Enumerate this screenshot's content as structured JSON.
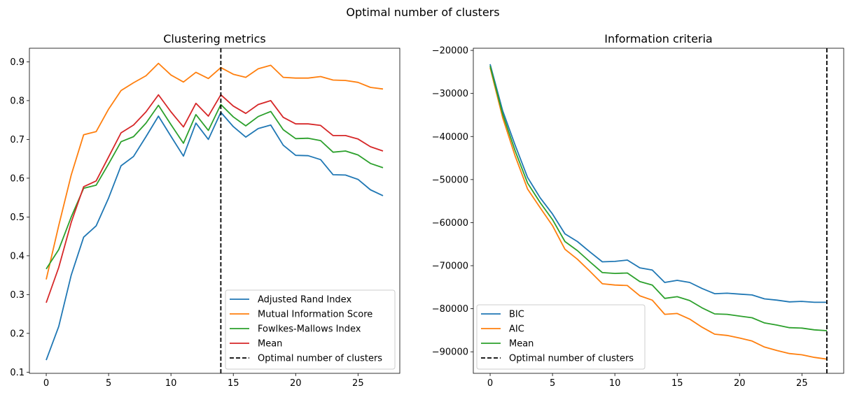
{
  "figure": {
    "title": "Optimal number of clusters"
  },
  "chart_data": [
    {
      "type": "line",
      "title": "Clustering metrics",
      "xlabel": "",
      "ylabel": "",
      "xlim": [
        -1.35,
        28.35
      ],
      "ylim": [
        0.097,
        0.935
      ],
      "xticks": [
        0,
        5,
        10,
        15,
        20,
        25
      ],
      "yticks": [
        0.1,
        0.2,
        0.3,
        0.4,
        0.5,
        0.6,
        0.7,
        0.8,
        0.9
      ],
      "ytick_labels": [
        "0.1",
        "0.2",
        "0.3",
        "0.4",
        "0.5",
        "0.6",
        "0.7",
        "0.8",
        "0.9"
      ],
      "grid": false,
      "legend_position": "lower-right",
      "x": [
        0,
        1,
        2,
        3,
        4,
        5,
        6,
        7,
        8,
        9,
        10,
        11,
        12,
        13,
        14,
        15,
        16,
        17,
        18,
        19,
        20,
        21,
        22,
        23,
        24,
        25,
        26,
        27
      ],
      "series": [
        {
          "name": "Adjusted Rand Index",
          "color": "#1f77b4",
          "values": [
            0.131,
            0.218,
            0.35,
            0.448,
            0.477,
            0.549,
            0.632,
            0.656,
            0.707,
            0.76,
            0.708,
            0.657,
            0.742,
            0.7,
            0.77,
            0.733,
            0.706,
            0.728,
            0.737,
            0.685,
            0.659,
            0.658,
            0.648,
            0.609,
            0.608,
            0.597,
            0.57,
            0.555
          ]
        },
        {
          "name": "Mutual Information Score",
          "color": "#ff7f0e",
          "values": [
            0.339,
            0.478,
            0.608,
            0.712,
            0.72,
            0.778,
            0.826,
            0.846,
            0.864,
            0.896,
            0.866,
            0.848,
            0.873,
            0.857,
            0.885,
            0.868,
            0.86,
            0.882,
            0.891,
            0.86,
            0.858,
            0.858,
            0.862,
            0.853,
            0.852,
            0.847,
            0.834,
            0.83
          ]
        },
        {
          "name": "Fowlkes-Mallows Index",
          "color": "#2ca02c",
          "values": [
            0.366,
            0.416,
            0.5,
            0.574,
            0.582,
            0.637,
            0.694,
            0.707,
            0.742,
            0.788,
            0.738,
            0.69,
            0.764,
            0.723,
            0.79,
            0.758,
            0.735,
            0.759,
            0.772,
            0.725,
            0.702,
            0.703,
            0.697,
            0.667,
            0.67,
            0.66,
            0.638,
            0.627
          ]
        },
        {
          "name": "Mean",
          "color": "#d62728",
          "values": [
            0.279,
            0.37,
            0.486,
            0.578,
            0.593,
            0.655,
            0.717,
            0.737,
            0.771,
            0.815,
            0.771,
            0.732,
            0.793,
            0.76,
            0.815,
            0.786,
            0.767,
            0.79,
            0.8,
            0.757,
            0.74,
            0.74,
            0.736,
            0.71,
            0.71,
            0.701,
            0.681,
            0.67
          ]
        }
      ],
      "vline": {
        "x": 14,
        "label": "Optimal number of clusters",
        "color": "#000000",
        "style": "dashed"
      }
    },
    {
      "type": "line",
      "title": "Information criteria",
      "xlabel": "",
      "ylabel": "",
      "xlim": [
        -1.35,
        28.35
      ],
      "ylim": [
        -95000,
        -19500
      ],
      "xticks": [
        0,
        5,
        10,
        15,
        20,
        25
      ],
      "yticks": [
        -90000,
        -80000,
        -70000,
        -60000,
        -50000,
        -40000,
        -30000,
        -20000
      ],
      "ytick_labels": [
        "−90000",
        "−80000",
        "−70000",
        "−60000",
        "−50000",
        "−40000",
        "−30000",
        "−20000"
      ],
      "grid": false,
      "legend_position": "lower-left",
      "x": [
        0,
        1,
        2,
        3,
        4,
        5,
        6,
        7,
        8,
        9,
        10,
        11,
        12,
        13,
        14,
        15,
        16,
        17,
        18,
        19,
        20,
        21,
        22,
        23,
        24,
        25,
        26,
        27
      ],
      "series": [
        {
          "name": "BIC",
          "color": "#1f77b4",
          "values": [
            -23200,
            -34000,
            -42000,
            -49500,
            -54200,
            -58000,
            -62600,
            -64400,
            -66800,
            -69100,
            -69000,
            -68700,
            -70500,
            -71000,
            -73900,
            -73400,
            -73900,
            -75300,
            -76500,
            -76400,
            -76600,
            -76800,
            -77700,
            -78000,
            -78400,
            -78300,
            -78500,
            -78500
          ]
        },
        {
          "name": "AIC",
          "color": "#ff7f0e",
          "values": [
            -24000,
            -35600,
            -44500,
            -52200,
            -56500,
            -60700,
            -66200,
            -68500,
            -71300,
            -74200,
            -74500,
            -74600,
            -77000,
            -78000,
            -81300,
            -81100,
            -82400,
            -84300,
            -85900,
            -86200,
            -86800,
            -87500,
            -88900,
            -89700,
            -90400,
            -90700,
            -91300,
            -91700
          ]
        },
        {
          "name": "Mean",
          "color": "#2ca02c",
          "values": [
            -23600,
            -34800,
            -43300,
            -50800,
            -55300,
            -59300,
            -64400,
            -66500,
            -69100,
            -71600,
            -71800,
            -71700,
            -73700,
            -74500,
            -77600,
            -77200,
            -78100,
            -79800,
            -81200,
            -81300,
            -81700,
            -82100,
            -83300,
            -83800,
            -84400,
            -84500,
            -84900,
            -85100
          ]
        }
      ],
      "vline": {
        "x": 27,
        "label": "Optimal number of clusters",
        "color": "#000000",
        "style": "dashed"
      }
    }
  ]
}
